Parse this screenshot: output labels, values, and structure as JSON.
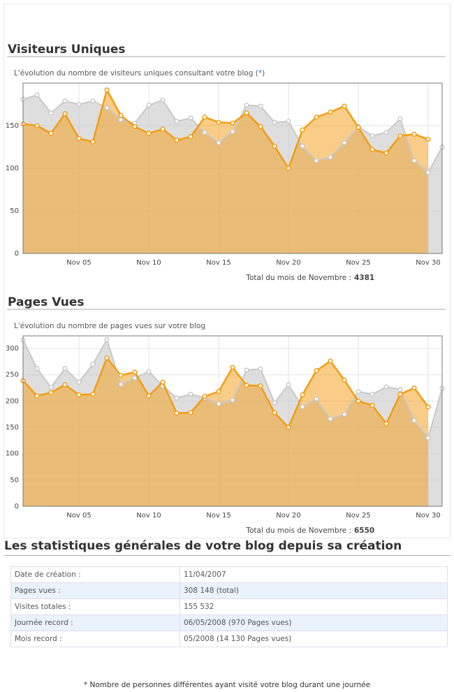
{
  "chart_data": [
    {
      "type": "area",
      "title": "Visiteurs Uniques",
      "subtitle": "L'évolution du nombre de visiteurs uniques consultant votre blog (",
      "subtitle_marker": "*",
      "subtitle_end": ")",
      "categories": [
        null,
        null,
        null,
        null,
        "Nov 05",
        null,
        null,
        null,
        null,
        "Nov 10",
        null,
        null,
        null,
        null,
        "Nov 15",
        null,
        null,
        null,
        null,
        "Nov 20",
        null,
        null,
        null,
        null,
        "Nov 25",
        null,
        null,
        null,
        null,
        "Nov 30",
        null
      ],
      "series": [
        {
          "color": "#c8c8c8",
          "values": [
            181,
            186,
            165,
            179,
            175,
            179,
            171,
            157,
            153,
            174,
            180,
            155,
            159,
            142,
            130,
            143,
            174,
            173,
            154,
            155,
            126,
            109,
            113,
            130,
            149,
            138,
            142,
            158,
            109,
            95,
            125
          ]
        },
        {
          "color": "#f39c12",
          "values": [
            152,
            150,
            141,
            164,
            135,
            131,
            192,
            162,
            149,
            141,
            146,
            133,
            137,
            160,
            154,
            153,
            165,
            149,
            126,
            100,
            145,
            160,
            166,
            173,
            148,
            122,
            118,
            138,
            140,
            134,
            null
          ]
        }
      ],
      "ylim": [
        0,
        200
      ],
      "yticks": [
        0,
        50,
        100,
        150
      ],
      "grid": true,
      "total_label": "Total du mois de Novembre :",
      "total": 4381
    },
    {
      "type": "area",
      "title": "Pages Vues",
      "subtitle": "L'évolution du nombre de pages vues sur votre blog",
      "categories": [
        null,
        null,
        null,
        null,
        "Nov 05",
        null,
        null,
        null,
        null,
        "Nov 10",
        null,
        null,
        null,
        null,
        "Nov 15",
        null,
        null,
        null,
        null,
        "Nov 20",
        null,
        null,
        null,
        null,
        "Nov 25",
        null,
        null,
        null,
        null,
        "Nov 30",
        null
      ],
      "series": [
        {
          "color": "#c8c8c8",
          "values": [
            316,
            262,
            226,
            262,
            236,
            270,
            317,
            232,
            244,
            256,
            229,
            206,
            213,
            206,
            195,
            202,
            259,
            261,
            197,
            231,
            189,
            204,
            166,
            175,
            218,
            213,
            227,
            222,
            163,
            130,
            224
          ]
        },
        {
          "color": "#f39c12",
          "values": [
            239,
            210,
            216,
            231,
            212,
            213,
            282,
            249,
            255,
            210,
            236,
            177,
            178,
            209,
            218,
            264,
            230,
            229,
            178,
            150,
            212,
            258,
            276,
            240,
            200,
            192,
            157,
            213,
            225,
            189,
            null
          ]
        }
      ],
      "ylim": [
        0,
        324
      ],
      "yticks": [
        0,
        50,
        100,
        150,
        200,
        250,
        300
      ],
      "grid": true,
      "total_label": "Total du mois de Novembre :",
      "total": 6550
    }
  ],
  "stats": {
    "title": "Les statistiques générales de votre blog depuis sa création",
    "rows": [
      [
        "Date de création :",
        "11/04/2007"
      ],
      [
        "Pages vues :",
        "308 148 (total)"
      ],
      [
        "Visites totales :",
        "155 532"
      ],
      [
        "Journée record :",
        "06/05/2008 (970 Pages vues)"
      ],
      [
        "Mois record :",
        "05/2008 (14 130 Pages vues)"
      ]
    ]
  },
  "footnote": "* Nombre de personnes différentes ayant visité votre blog durant une journée"
}
